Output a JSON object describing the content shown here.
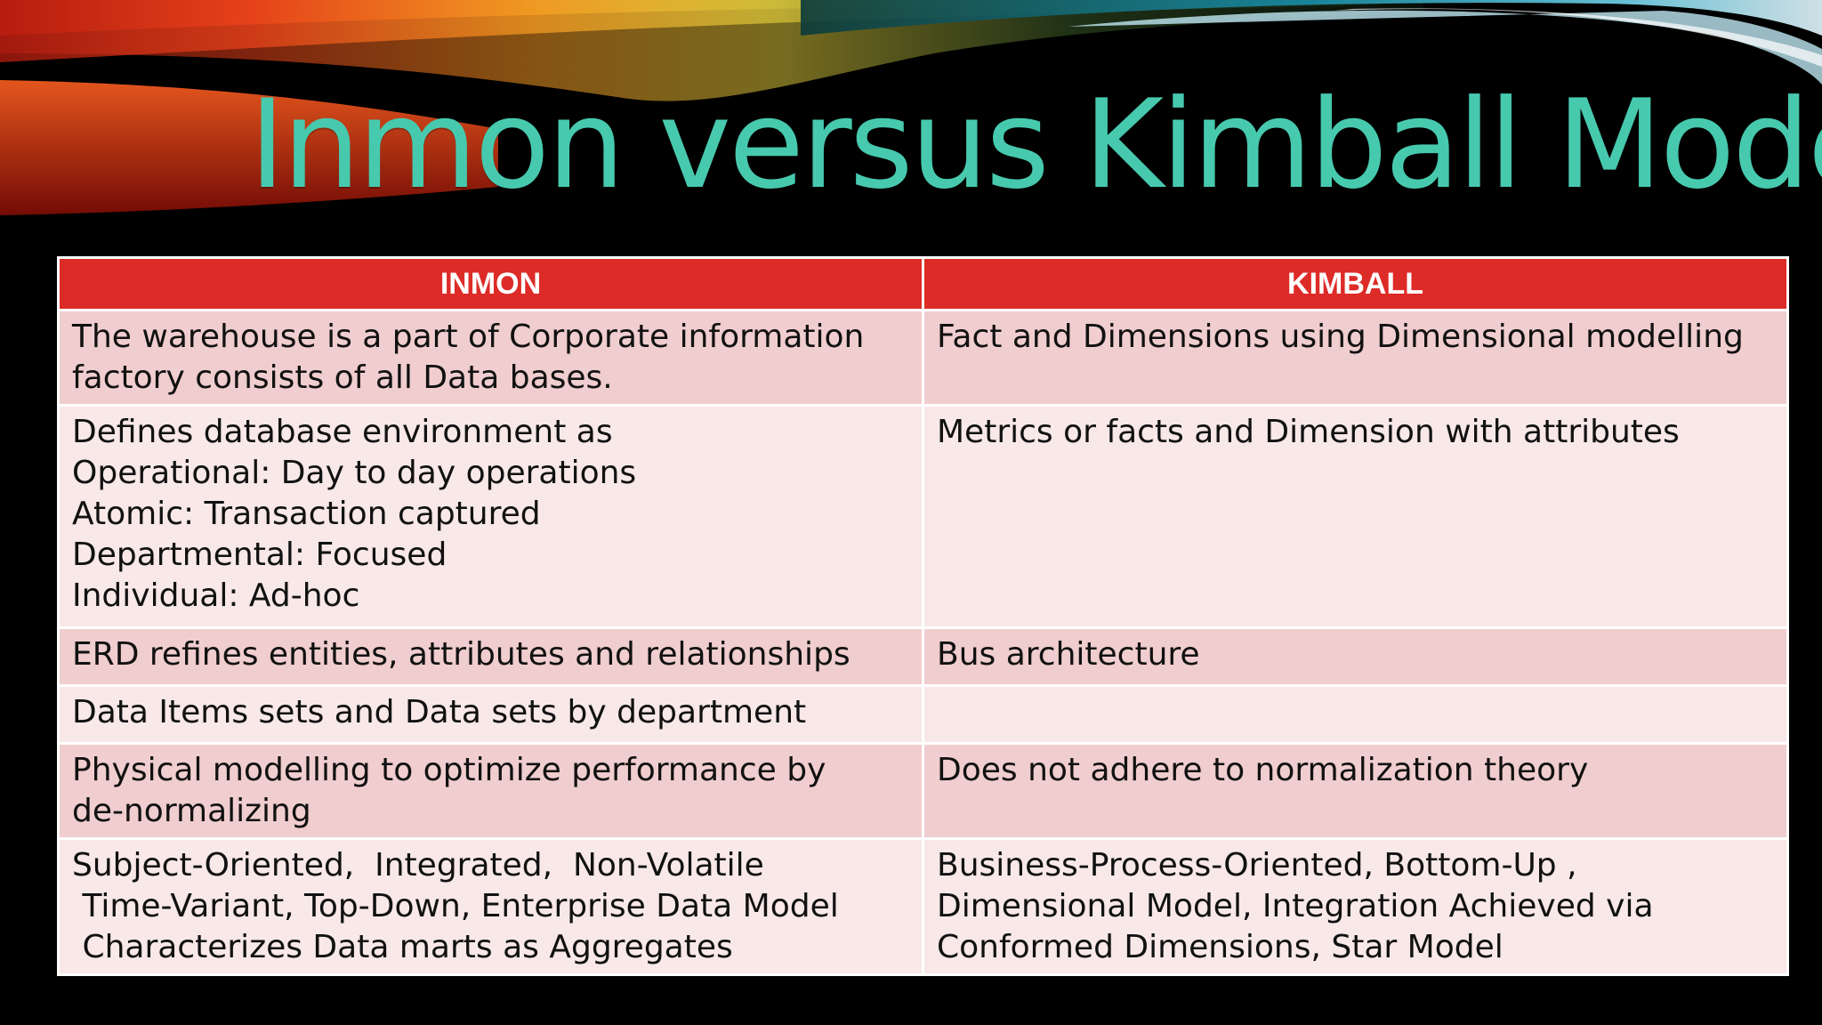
{
  "slide": {
    "title": "Inmon versus Kimball Model"
  },
  "table": {
    "headers": [
      "INMON",
      "KIMBALL"
    ],
    "rows": [
      [
        "The warehouse is a part of Corporate information\nfactory consists of all Data bases.",
        "Fact and Dimensions using Dimensional modelling"
      ],
      [
        "Defines database environment as\nOperational: Day to day operations\nAtomic: Transaction captured\nDepartmental: Focused\nIndividual: Ad-hoc",
        "Metrics or facts and Dimension with attributes"
      ],
      [
        "ERD refines entities, attributes and relationships",
        "Bus architecture"
      ],
      [
        "Data Items sets and Data sets by department",
        ""
      ],
      [
        "Physical modelling to optimize performance by\nde-normalizing",
        "Does not adhere to normalization theory"
      ],
      [
        "Subject-Oriented,  Integrated,  Non-Volatile\n Time-Variant, Top-Down, Enterprise Data Model\n Characterizes Data marts as Aggregates",
        "Business-Process-Oriented, Bottom-Up ,\nDimensional Model, Integration Achieved via\nConformed Dimensions, Star Model"
      ]
    ]
  },
  "colors": {
    "background": "#000000",
    "title": "#47c9ae",
    "header_fill": "#dd2b27",
    "row_dark": "#f0cdce",
    "row_light": "#f8e8e8"
  }
}
